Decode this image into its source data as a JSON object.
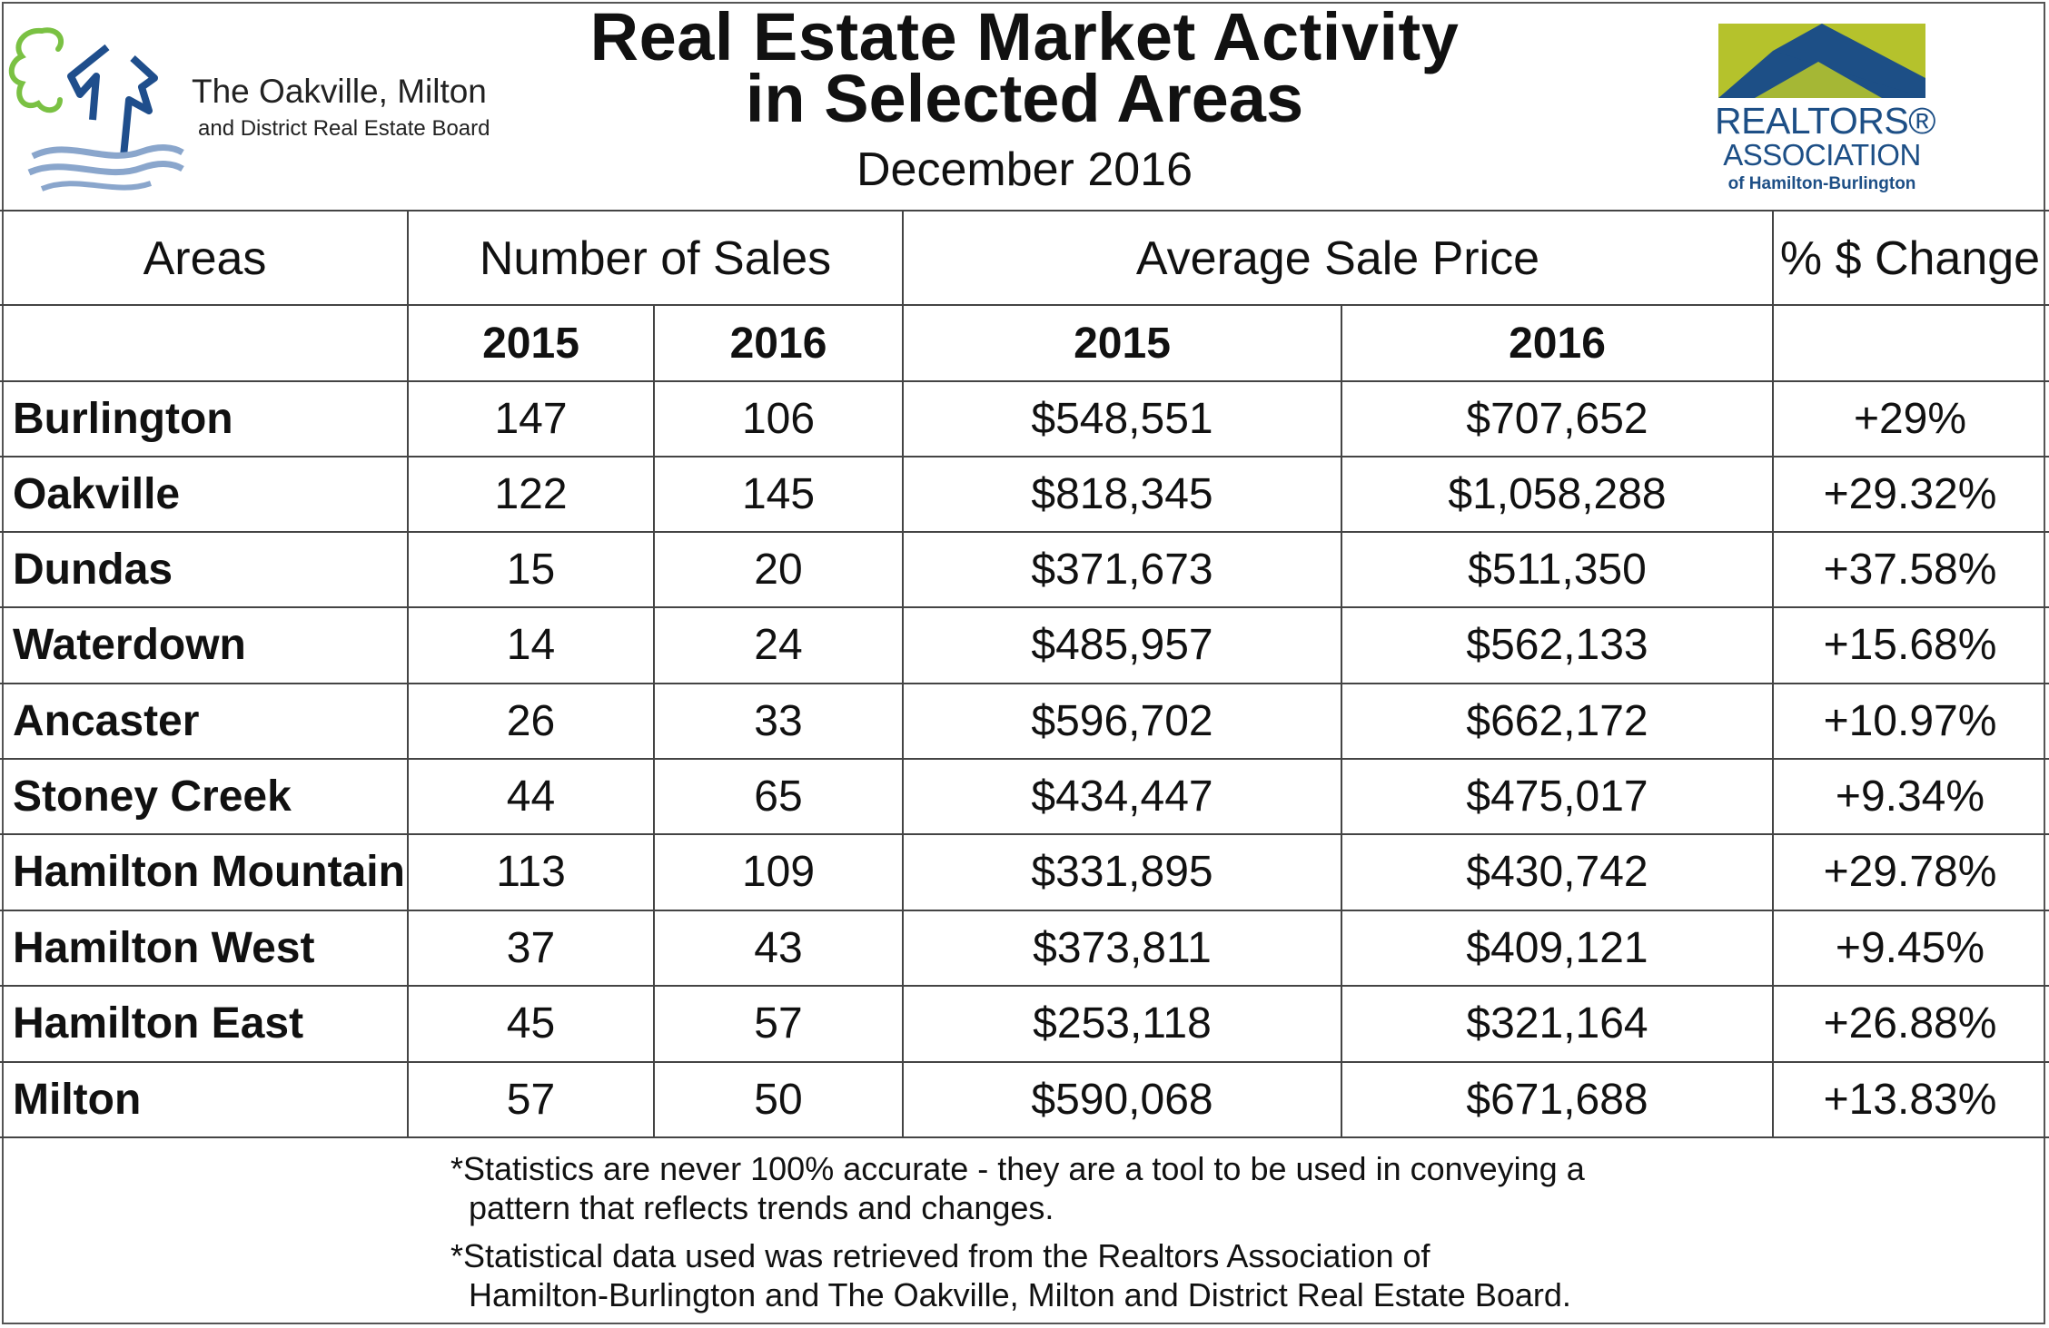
{
  "header": {
    "title_line1": "Real Estate Market Activity",
    "title_line2": "in Selected Areas",
    "subtitle": "December 2016"
  },
  "left_logo": {
    "line1": "The Oakville, Milton",
    "line2": "and District Real Estate Board",
    "colors": {
      "green": "#7ac143",
      "blue": "#1f4e8c",
      "wave": "#8aa6cc"
    }
  },
  "right_logo": {
    "line1": "REALTORS®",
    "line2": "ASSOCIATION",
    "line3": "of Hamilton-Burlington",
    "colors": {
      "lime": "#b5c22c",
      "blue": "#1d4f86"
    }
  },
  "table": {
    "col_headers": {
      "areas": "Areas",
      "sales": "Number of Sales",
      "price": "Average Sale Price",
      "change": "% $ Change"
    },
    "year_headers": [
      "2015",
      "2016",
      "2015",
      "2016"
    ],
    "rows": [
      {
        "area": "Burlington",
        "sales2015": "147",
        "sales2016": "106",
        "price2015": "$548,551",
        "price2016": "$707,652",
        "change": "+29%"
      },
      {
        "area": "Oakville",
        "sales2015": "122",
        "sales2016": "145",
        "price2015": "$818,345",
        "price2016": "$1,058,288",
        "change": "+29.32%"
      },
      {
        "area": "Dundas",
        "sales2015": "15",
        "sales2016": "20",
        "price2015": "$371,673",
        "price2016": "$511,350",
        "change": "+37.58%"
      },
      {
        "area": "Waterdown",
        "sales2015": "14",
        "sales2016": "24",
        "price2015": "$485,957",
        "price2016": "$562,133",
        "change": "+15.68%"
      },
      {
        "area": "Ancaster",
        "sales2015": "26",
        "sales2016": "33",
        "price2015": "$596,702",
        "price2016": "$662,172",
        "change": "+10.97%"
      },
      {
        "area": "Stoney Creek",
        "sales2015": "44",
        "sales2016": "65",
        "price2015": "$434,447",
        "price2016": "$475,017",
        "change": "+9.34%"
      },
      {
        "area": "Hamilton Mountain",
        "sales2015": "113",
        "sales2016": "109",
        "price2015": "$331,895",
        "price2016": "$430,742",
        "change": "+29.78%"
      },
      {
        "area": "Hamilton West",
        "sales2015": "37",
        "sales2016": "43",
        "price2015": "$373,811",
        "price2016": "$409,121",
        "change": "+9.45%"
      },
      {
        "area": "Hamilton East",
        "sales2015": "45",
        "sales2016": "57",
        "price2015": "$253,118",
        "price2016": "$321,164",
        "change": "+26.88%"
      },
      {
        "area": "Milton",
        "sales2015": "57",
        "sales2016": "50",
        "price2015": "$590,068",
        "price2016": "$671,688",
        "change": "+13.83%"
      }
    ]
  },
  "notes": {
    "note1_line1": "*Statistics are never 100% accurate - they are a tool to be used in conveying a",
    "note1_line2": "pattern that reflects trends and changes.",
    "note2_line1": "*Statistical data used was retrieved from the Realtors Association of",
    "note2_line2": "Hamilton-Burlington and The Oakville, Milton and District Real Estate Board."
  }
}
